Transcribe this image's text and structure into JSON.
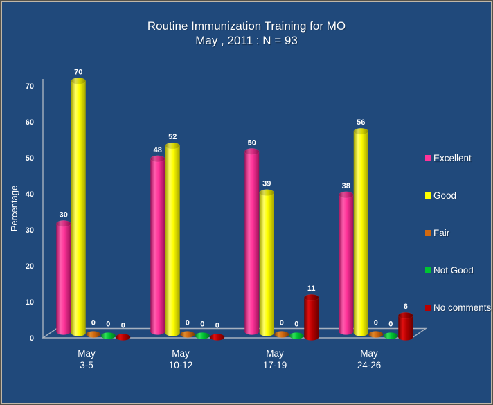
{
  "frame": {
    "background": "#20497B",
    "border_light": "#c0b7a8",
    "border_dark": "#55524a"
  },
  "chart_data": {
    "type": "bar",
    "style": "3d-cylinder",
    "title": "Routine Immunization Training for MO",
    "subtitle": "May , 2011 : N = 93",
    "ylabel": "Percentage",
    "ylim": [
      0,
      70
    ],
    "ytick_step": 10,
    "grid": false,
    "legend_position": "right",
    "text_color": "#ffffff",
    "axis_color": "#b6bdc6",
    "categories": [
      [
        "May",
        "3-5"
      ],
      [
        "May",
        "10-12"
      ],
      [
        "May",
        "17-19"
      ],
      [
        "May",
        "24-26"
      ]
    ],
    "series": [
      {
        "name": "Excellent",
        "color": "#ff3399",
        "shade_light": "#ff5fae",
        "shade_dark": "#9c1159",
        "values": [
          30,
          48,
          50,
          38
        ]
      },
      {
        "name": "Good",
        "color": "#ffff00",
        "shade_light": "#ffff66",
        "shade_dark": "#a3a300",
        "values": [
          70,
          52,
          39,
          56
        ]
      },
      {
        "name": "Fair",
        "color": "#d2690f",
        "shade_light": "#e08a2e",
        "shade_dark": "#7c3d06",
        "values": [
          0,
          0,
          0,
          0
        ]
      },
      {
        "name": "Not Good",
        "color": "#00c432",
        "shade_light": "#33e05c",
        "shade_dark": "#007620",
        "values": [
          0,
          0,
          0,
          0
        ]
      },
      {
        "name": "No comments",
        "color": "#b80000",
        "shade_light": "#e01010",
        "shade_dark": "#6b0000",
        "values": [
          0,
          0,
          11,
          6
        ]
      }
    ]
  }
}
